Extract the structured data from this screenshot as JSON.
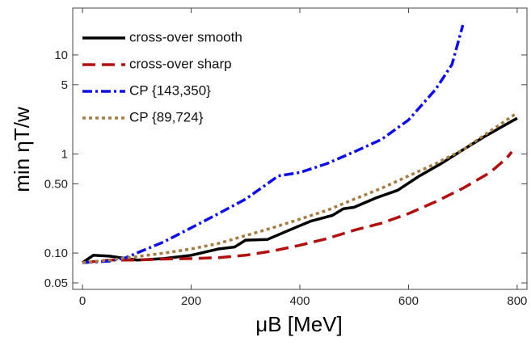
{
  "chart_data": {
    "type": "line",
    "x_label": "μB [MeV]",
    "y_label": "min ηT/w",
    "log_y": true,
    "xlim": [
      -18,
      818
    ],
    "ylim": [
      0.043,
      29.7
    ],
    "xticks": [
      0,
      200,
      400,
      600,
      800
    ],
    "yticks": [
      0.05,
      {
        "value": 0.1,
        "label": "0.10"
      },
      {
        "value": 0.5,
        "label": "0.50"
      },
      1,
      5,
      10
    ],
    "legend": "upper left",
    "series": [
      {
        "name": "cross-over smooth",
        "color": "#000000",
        "x": [
          0,
          20,
          50,
          80,
          100,
          150,
          200,
          250,
          280,
          300,
          340,
          380,
          420,
          460,
          480,
          500,
          540,
          580,
          620,
          660,
          700,
          740,
          800
        ],
        "values": [
          0.08,
          0.095,
          0.093,
          0.088,
          0.085,
          0.088,
          0.095,
          0.11,
          0.115,
          0.135,
          0.137,
          0.17,
          0.21,
          0.24,
          0.28,
          0.29,
          0.36,
          0.43,
          0.6,
          0.8,
          1.1,
          1.5,
          2.3
        ]
      },
      {
        "name": "cross-over sharp",
        "color": "#b01010",
        "x": [
          0,
          50,
          100,
          150,
          200,
          250,
          300,
          350,
          400,
          450,
          500,
          550,
          600,
          650,
          700,
          750,
          780,
          790
        ],
        "values": [
          0.08,
          0.085,
          0.085,
          0.087,
          0.088,
          0.09,
          0.095,
          0.105,
          0.12,
          0.14,
          0.17,
          0.2,
          0.25,
          0.33,
          0.45,
          0.65,
          0.9,
          1.05
        ]
      },
      {
        "name": "CP {143,350}",
        "color": "#1010e0",
        "x": [
          0,
          50,
          80,
          100,
          150,
          200,
          250,
          300,
          340,
          360,
          400,
          450,
          500,
          550,
          600,
          650,
          680,
          700
        ],
        "values": [
          0.08,
          0.083,
          0.09,
          0.1,
          0.13,
          0.18,
          0.25,
          0.35,
          0.5,
          0.6,
          0.65,
          0.8,
          1.05,
          1.4,
          2.2,
          4.5,
          8,
          20
        ]
      },
      {
        "name": "CP {89,724}",
        "color": "#a67c45",
        "x": [
          0,
          50,
          100,
          150,
          200,
          250,
          300,
          350,
          400,
          450,
          500,
          550,
          600,
          650,
          700,
          750,
          800
        ],
        "values": [
          0.08,
          0.085,
          0.092,
          0.1,
          0.11,
          0.125,
          0.15,
          0.18,
          0.22,
          0.27,
          0.35,
          0.45,
          0.6,
          0.8,
          1.1,
          1.7,
          2.6
        ]
      }
    ]
  }
}
